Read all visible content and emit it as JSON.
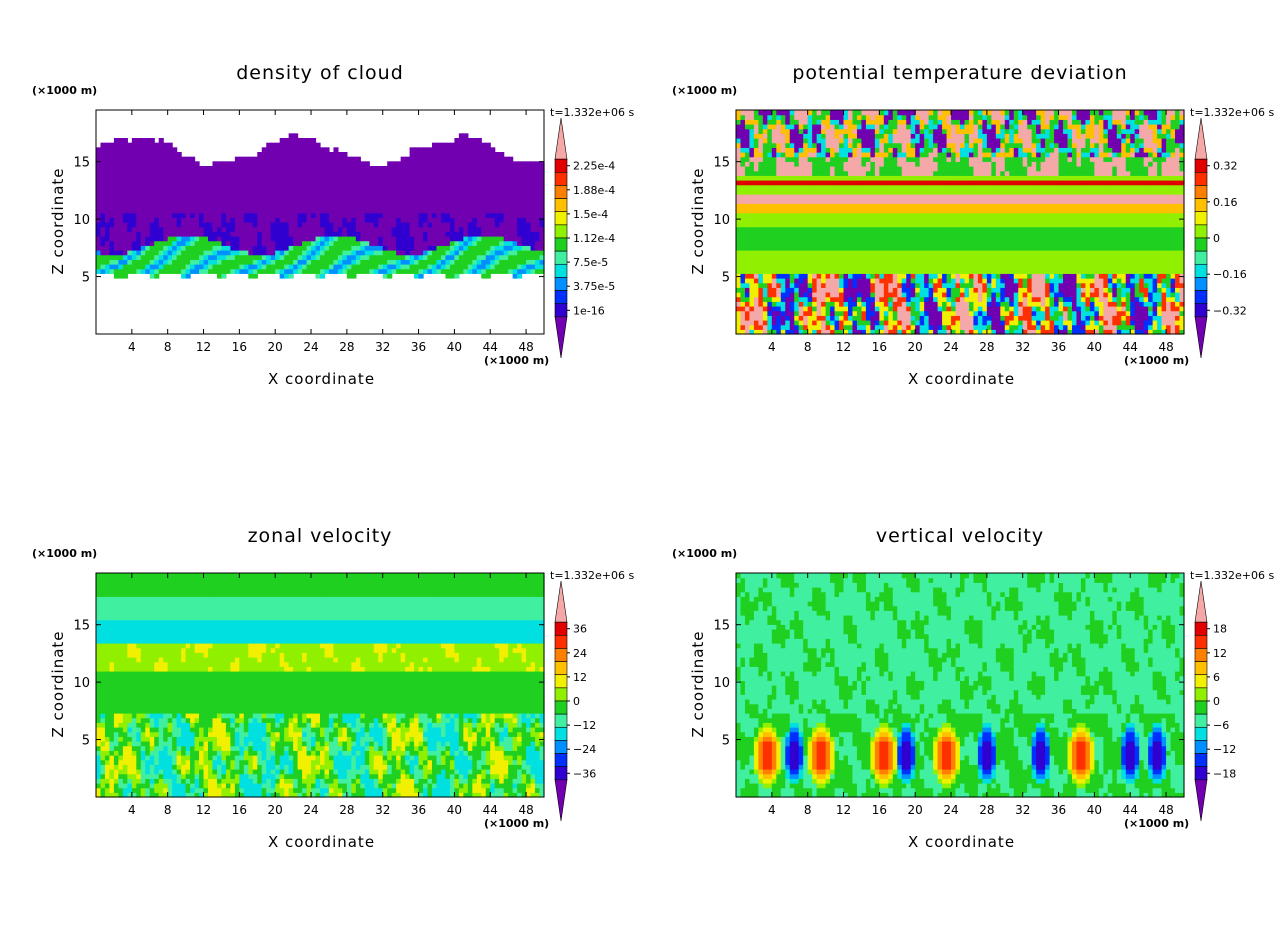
{
  "charts": [
    {
      "title": "density of cloud",
      "xlabel": "X coordinate",
      "ylabel": "Z coordinate",
      "x_unit": "(×1000 m)",
      "z_unit": "(×1000 m)",
      "time_label": "t=1.332e+06 s",
      "xticks": [
        4,
        8,
        12,
        16,
        20,
        24,
        28,
        32,
        36,
        40,
        44,
        48
      ],
      "yticks": [
        5,
        10,
        15
      ],
      "xlim": [
        0,
        50
      ],
      "ylim": [
        0,
        19.5
      ],
      "colorbar_labels": [
        "2.25e-4",
        "1.88e-4",
        "1.5e-4",
        "1.12e-4",
        "7.5e-5",
        "3.75e-5",
        "1e-16"
      ],
      "field": "cloud"
    },
    {
      "title": "potential temperature deviation",
      "xlabel": "X coordinate",
      "ylabel": "Z coordinate",
      "x_unit": "(×1000 m)",
      "z_unit": "(×1000 m)",
      "time_label": "t=1.332e+06 s",
      "xticks": [
        4,
        8,
        12,
        16,
        20,
        24,
        28,
        32,
        36,
        40,
        44,
        48
      ],
      "yticks": [
        5,
        10,
        15
      ],
      "xlim": [
        0,
        50
      ],
      "ylim": [
        0,
        19.5
      ],
      "colorbar_labels": [
        "0.32",
        "0.16",
        "0",
        "−0.16",
        "−0.32"
      ],
      "field": "theta"
    },
    {
      "title": "zonal velocity",
      "xlabel": "X coordinate",
      "ylabel": "Z coordinate",
      "x_unit": "(×1000 m)",
      "z_unit": "(×1000 m)",
      "time_label": "t=1.332e+06 s",
      "xticks": [
        4,
        8,
        12,
        16,
        20,
        24,
        28,
        32,
        36,
        40,
        44,
        48
      ],
      "yticks": [
        5,
        10,
        15
      ],
      "xlim": [
        0,
        50
      ],
      "ylim": [
        0,
        19.5
      ],
      "colorbar_labels": [
        "36",
        "24",
        "12",
        "0",
        "−12",
        "−24",
        "−36"
      ],
      "field": "u"
    },
    {
      "title": "vertical velocity",
      "xlabel": "X coordinate",
      "ylabel": "Z coordinate",
      "x_unit": "(×1000 m)",
      "z_unit": "(×1000 m)",
      "time_label": "t=1.332e+06 s",
      "xticks": [
        4,
        8,
        12,
        16,
        20,
        24,
        28,
        32,
        36,
        40,
        44,
        48
      ],
      "yticks": [
        5,
        10,
        15
      ],
      "xlim": [
        0,
        50
      ],
      "ylim": [
        0,
        19.5
      ],
      "colorbar_labels": [
        "18",
        "12",
        "6",
        "0",
        "−6",
        "−12",
        "−18"
      ],
      "field": "w"
    }
  ],
  "chart_data": [
    {
      "type": "heatmap",
      "title": "density of cloud",
      "xlabel": "X coordinate",
      "ylabel": "Z coordinate",
      "xlim": [
        0,
        50
      ],
      "ylim": [
        0,
        19.5
      ],
      "colorbar_labels": [
        "2.25e-4",
        "1.88e-4",
        "1.5e-4",
        "1.12e-4",
        "7.5e-5",
        "3.75e-5",
        "1e-16"
      ]
    },
    {
      "type": "heatmap",
      "title": "potential temperature deviation",
      "xlabel": "X coordinate",
      "ylabel": "Z coordinate",
      "xlim": [
        0,
        50
      ],
      "ylim": [
        0,
        19.5
      ],
      "colorbar_labels": [
        "0.32",
        "0.16",
        "0",
        "−0.16",
        "−0.32"
      ]
    },
    {
      "type": "heatmap",
      "title": "zonal velocity",
      "xlabel": "X coordinate",
      "ylabel": "Z coordinate",
      "xlim": [
        0,
        50
      ],
      "ylim": [
        0,
        19.5
      ],
      "colorbar_labels": [
        "36",
        "24",
        "12",
        "0",
        "−12",
        "−24",
        "−36"
      ]
    },
    {
      "type": "heatmap",
      "title": "vertical velocity",
      "xlabel": "X coordinate",
      "ylabel": "Z coordinate",
      "xlim": [
        0,
        50
      ],
      "ylim": [
        0,
        19.5
      ],
      "colorbar_labels": [
        "18",
        "12",
        "6",
        "0",
        "−6",
        "−12",
        "−18"
      ]
    }
  ],
  "colormap": [
    "#7000b0",
    "#3000d0",
    "#0030ff",
    "#0090ff",
    "#00e0e0",
    "#40f0a0",
    "#20d020",
    "#90f000",
    "#f0f000",
    "#ffc000",
    "#ff8000",
    "#ff3000",
    "#e00000",
    "#f5a8a8"
  ]
}
